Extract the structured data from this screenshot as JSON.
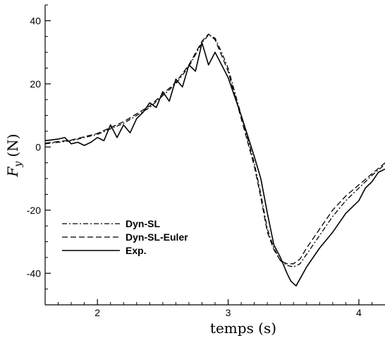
{
  "chart_data": {
    "type": "line",
    "xlabel": "temps (s)",
    "ylabel_main": "F",
    "ylabel_sub": "y",
    "ylabel_unit": "(N)",
    "xlim": [
      1.6,
      4.2
    ],
    "ylim": [
      -50,
      45
    ],
    "x_ticks": [
      2,
      3,
      4
    ],
    "y_ticks": [
      -40,
      -20,
      0,
      20,
      40
    ],
    "grid": false,
    "legend_position": "bottom-left",
    "series": [
      {
        "name": "Dyn-SL",
        "dash": "dash-dot",
        "x": [
          1.6,
          1.8,
          2.0,
          2.2,
          2.4,
          2.6,
          2.7,
          2.8,
          2.85,
          2.9,
          2.95,
          3.0,
          3.1,
          3.2,
          3.25,
          3.3,
          3.35,
          3.4,
          3.45,
          3.5,
          3.55,
          3.6,
          3.7,
          3.8,
          3.9,
          4.0,
          4.1,
          4.2
        ],
        "y": [
          1,
          2,
          4,
          7.5,
          12.5,
          20,
          25.5,
          33,
          35.5,
          34.5,
          30,
          25,
          10,
          -5,
          -15,
          -26,
          -32,
          -36,
          -37.5,
          -38,
          -37,
          -34,
          -28,
          -22,
          -17,
          -13,
          -9,
          -5.5
        ]
      },
      {
        "name": "Dyn-SL-Euler",
        "dash": "dashed",
        "x": [
          1.6,
          1.8,
          2.0,
          2.2,
          2.4,
          2.6,
          2.7,
          2.8,
          2.85,
          2.9,
          2.95,
          3.0,
          3.1,
          3.2,
          3.25,
          3.3,
          3.35,
          3.4,
          3.45,
          3.5,
          3.55,
          3.6,
          3.7,
          3.8,
          3.9,
          4.0,
          4.1,
          4.2
        ],
        "y": [
          1.2,
          2.2,
          4.3,
          8,
          13,
          20.5,
          26,
          33.5,
          35.8,
          34,
          29,
          24,
          9,
          -6,
          -16,
          -27,
          -32.5,
          -36,
          -37,
          -37,
          -35.5,
          -32,
          -26,
          -20,
          -15.5,
          -12,
          -8.5,
          -5
        ]
      },
      {
        "name": "Exp.",
        "dash": "solid",
        "x": [
          1.6,
          1.7,
          1.75,
          1.8,
          1.85,
          1.9,
          1.95,
          2.0,
          2.05,
          2.1,
          2.15,
          2.2,
          2.25,
          2.3,
          2.35,
          2.4,
          2.45,
          2.5,
          2.55,
          2.6,
          2.65,
          2.7,
          2.75,
          2.8,
          2.85,
          2.9,
          2.95,
          3.0,
          3.1,
          3.2,
          3.25,
          3.3,
          3.35,
          3.4,
          3.45,
          3.48,
          3.52,
          3.56,
          3.6,
          3.7,
          3.8,
          3.9,
          4.0,
          4.05,
          4.1,
          4.15,
          4.2
        ],
        "y": [
          2,
          2.5,
          3,
          1,
          1.5,
          0.5,
          1.5,
          3,
          2,
          7,
          3,
          7,
          4.5,
          9,
          11,
          14,
          12.5,
          17.5,
          14.5,
          21.5,
          19,
          26,
          24,
          33,
          26,
          30,
          26,
          22,
          10,
          -3,
          -10,
          -21,
          -31,
          -35,
          -40,
          -42.5,
          -44,
          -41,
          -38,
          -32,
          -27,
          -21,
          -17,
          -13,
          -11,
          -8,
          -7
        ]
      }
    ]
  }
}
